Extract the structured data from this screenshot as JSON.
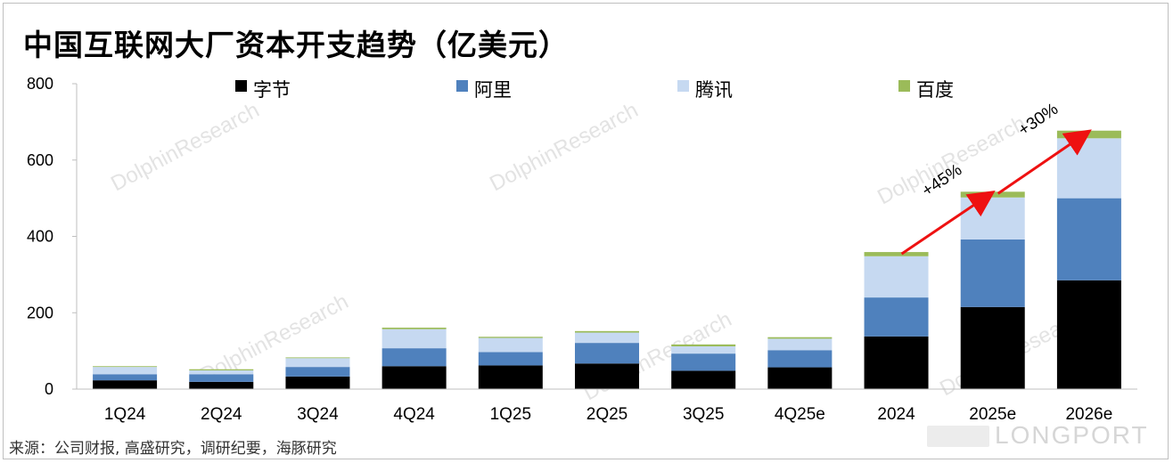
{
  "title": "中国互联网大厂资本开支趋势（亿美元）",
  "source": "来源：公司财报, 高盛研究，调研纪要，海豚研究",
  "watermark": "DolphinResearch",
  "brand": "LONGPORT",
  "chart_data": {
    "type": "bar",
    "stacked": true,
    "categories": [
      "1Q24",
      "2Q24",
      "3Q24",
      "4Q24",
      "1Q25",
      "2Q25",
      "3Q25",
      "4Q25e",
      "2024",
      "2025e",
      "2026e"
    ],
    "series": [
      {
        "name": "字节",
        "color": "#000000",
        "values": [
          23,
          19,
          33,
          60,
          62,
          67,
          48,
          57,
          138,
          215,
          285
        ]
      },
      {
        "name": "阿里",
        "color": "#4f81bd",
        "values": [
          16,
          20,
          25,
          47,
          35,
          54,
          45,
          45,
          102,
          177,
          215
        ]
      },
      {
        "name": "腾讯",
        "color": "#c6d9f1",
        "values": [
          19,
          10,
          23,
          50,
          37,
          27,
          19,
          30,
          108,
          110,
          157
        ]
      },
      {
        "name": "百度",
        "color": "#9bbb59",
        "values": [
          2,
          3,
          2,
          4,
          3,
          4,
          5,
          4,
          11,
          15,
          20
        ]
      }
    ],
    "ylim": [
      0,
      800
    ],
    "yticks": [
      0,
      200,
      400,
      600,
      800
    ],
    "legend_position": "top",
    "annotations": [
      {
        "text": "+45%",
        "from": "2024",
        "to": "2025e"
      },
      {
        "text": "+30%",
        "from": "2025e",
        "to": "2026e"
      }
    ]
  }
}
